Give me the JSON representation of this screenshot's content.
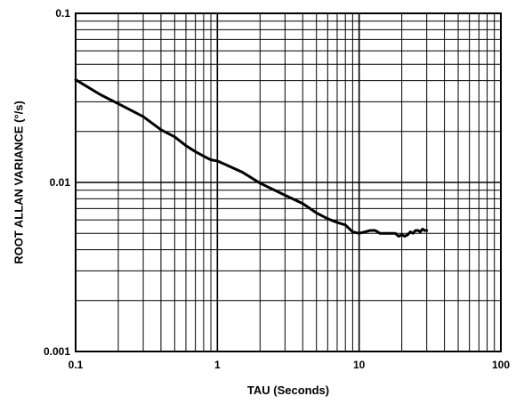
{
  "chart_data": {
    "type": "line",
    "title": "",
    "xlabel": "TAU (Seconds)",
    "ylabel": "ROOT ALLAN VARIANCE (°/s)",
    "xscale": "log",
    "yscale": "log",
    "xlim": [
      0.1,
      100
    ],
    "ylim": [
      0.001,
      0.1
    ],
    "grid": true,
    "legend": "none",
    "x_ticks": [
      {
        "value": 0.1,
        "label": "0.1"
      },
      {
        "value": 1,
        "label": "1"
      },
      {
        "value": 10,
        "label": "10"
      },
      {
        "value": 100,
        "label": "100"
      }
    ],
    "y_ticks": [
      {
        "value": 0.001,
        "label": "0.001"
      },
      {
        "value": 0.01,
        "label": "0.01"
      },
      {
        "value": 0.1,
        "label": "0.1"
      }
    ],
    "series": [
      {
        "color": "#000000",
        "x": [
          0.1,
          0.15,
          0.2,
          0.3,
          0.4,
          0.5,
          0.6,
          0.7,
          0.8,
          0.9,
          1.0,
          1.5,
          2.0,
          3.0,
          4.0,
          5.0,
          6.0,
          7.0,
          8.0,
          9.0,
          10.0,
          11.0,
          12.0,
          13.0,
          14.0,
          15.0,
          16.0,
          17.0,
          18.0,
          19.0,
          20.0,
          21.0,
          22.0,
          23.0,
          24.0,
          25.0,
          26.0,
          27.0,
          28.0,
          29.0,
          30.0
        ],
        "y": [
          0.0405,
          0.033,
          0.0292,
          0.0245,
          0.0205,
          0.0186,
          0.0165,
          0.0152,
          0.0143,
          0.0136,
          0.0134,
          0.0115,
          0.0099,
          0.0084,
          0.0075,
          0.0066,
          0.0061,
          0.0058,
          0.0056,
          0.0051,
          0.005,
          0.0051,
          0.0052,
          0.0052,
          0.005,
          0.005,
          0.005,
          0.005,
          0.005,
          0.0048,
          0.0049,
          0.0048,
          0.0049,
          0.0051,
          0.005,
          0.0052,
          0.0052,
          0.0051,
          0.0053,
          0.0052,
          0.0052
        ]
      }
    ]
  }
}
